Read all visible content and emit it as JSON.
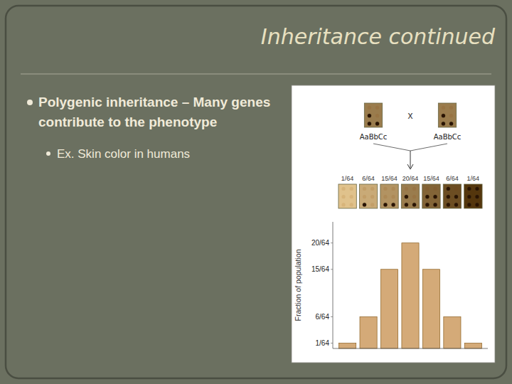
{
  "chart_data": {
    "type": "bar",
    "title": "Inheritance continued",
    "annotations": [
      "Polygenic inheritance – Many genes",
      "contribute to the phenotype",
      "Ex. Skin color in humans",
      "AaBbCc",
      "x",
      "AaBbCc"
    ],
    "categories": [
      null,
      null,
      null,
      null,
      null,
      null,
      null
    ],
    "values": [
      1,
      6,
      15,
      20,
      15,
      6,
      1
    ],
    "value_labels": [
      "1/64",
      "6/64",
      "15/64",
      "20/64",
      "15/64",
      "6/64",
      "1/64"
    ],
    "data_labels": true,
    "color": "#d4aa78",
    "ylabel": "Fraction of population",
    "ylim": [
      0,
      24
    ],
    "yticks": [
      {
        "value": 1,
        "label": "1/64"
      },
      {
        "value": 6,
        "label": "6/64"
      },
      {
        "value": 15,
        "label": "15/64"
      },
      {
        "value": 20,
        "label": "20/64"
      }
    ],
    "tick_labels": "y",
    "grid": false
  }
}
